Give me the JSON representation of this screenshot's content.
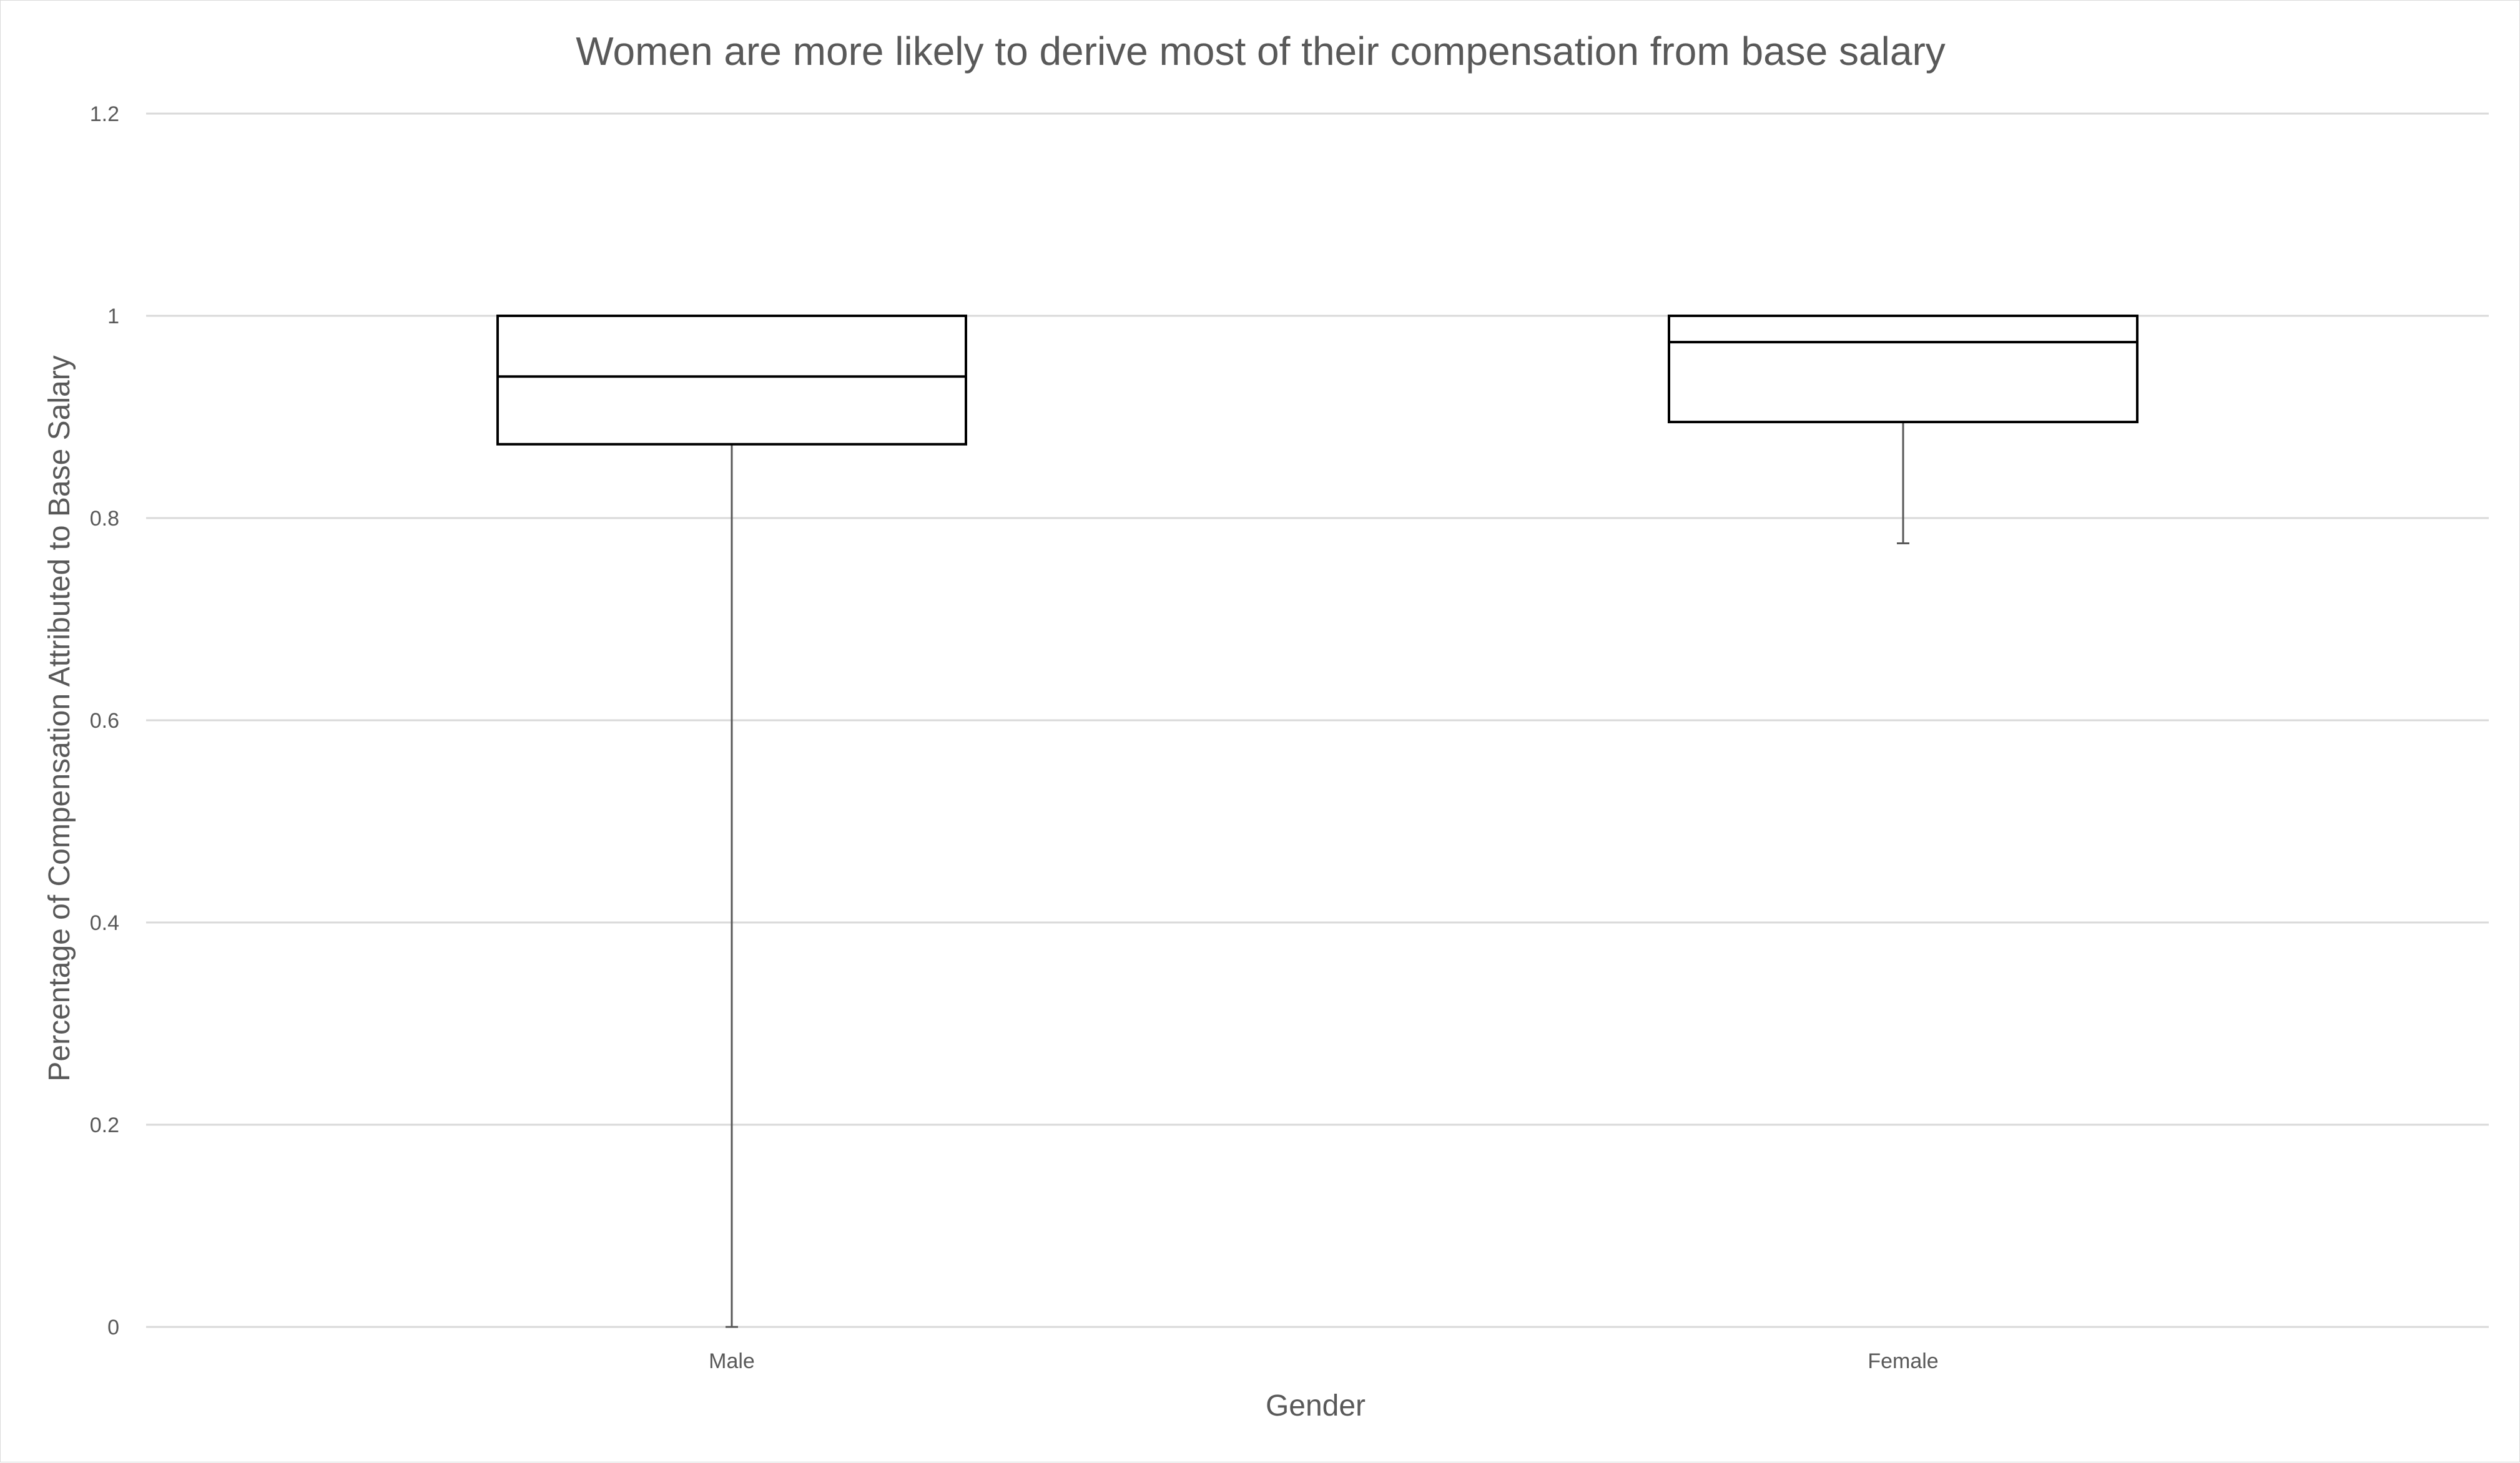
{
  "chart_data": {
    "type": "boxplot",
    "title": "Women are more likely to derive most of their compensation from base salary",
    "xlabel": "Gender",
    "ylabel": "Percentage of Compensation Attributed to Base Salary",
    "ylim": [
      0,
      1.2
    ],
    "yticks": [
      "0",
      "0.2",
      "0.4",
      "0.6",
      "0.8",
      "1",
      "1.2"
    ],
    "categories": [
      "Male",
      "Female"
    ],
    "boxes": [
      {
        "category": "Male",
        "min": 0.0,
        "q1": 0.873,
        "median": 0.94,
        "q3": 1.0,
        "max": 1.0
      },
      {
        "category": "Female",
        "min": 0.775,
        "q1": 0.895,
        "median": 0.974,
        "q3": 1.0,
        "max": 1.0
      }
    ],
    "grid": true,
    "legend": "none",
    "colors": {
      "box_stroke": "#000000",
      "whisker_stroke": "#595959",
      "grid": "#d9d9d9",
      "text": "#595959"
    }
  }
}
